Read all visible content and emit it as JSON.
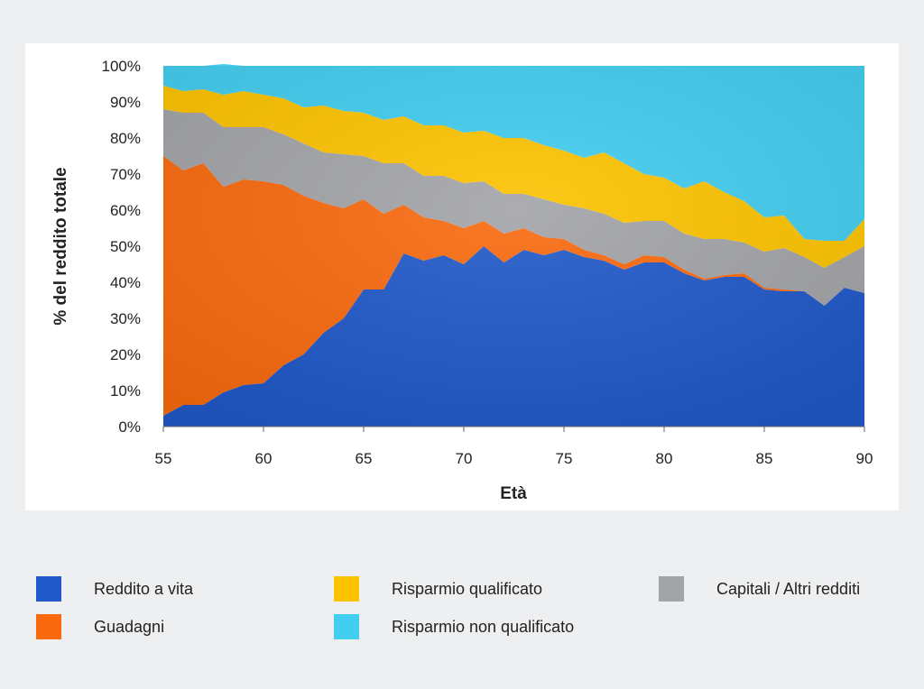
{
  "chart_data": {
    "type": "area",
    "stacked": true,
    "xlabel": "Età",
    "ylabel": "% del reddito totale",
    "xlim": [
      55,
      90
    ],
    "ylim": [
      0,
      100
    ],
    "x_ticks": [
      "55",
      "60",
      "65",
      "70",
      "75",
      "80",
      "85",
      "90"
    ],
    "y_ticks": [
      "0%",
      "10%",
      "20%",
      "30%",
      "40%",
      "50%",
      "60%",
      "70%",
      "80%",
      "90%",
      "100%"
    ],
    "legend_position": "bottom",
    "x": [
      55,
      56,
      57,
      58,
      59,
      60,
      61,
      62,
      63,
      64,
      65,
      66,
      67,
      68,
      69,
      70,
      71,
      72,
      73,
      74,
      75,
      76,
      77,
      78,
      79,
      80,
      81,
      82,
      83,
      84,
      85,
      86,
      87,
      88,
      89,
      90
    ],
    "series": [
      {
        "name": "Reddito a vita",
        "color": "#2159c9",
        "values": [
          3,
          6,
          6,
          9.5,
          11.5,
          12,
          17,
          20,
          26,
          30,
          38,
          38,
          48,
          46,
          47.5,
          45,
          50,
          45.5,
          49,
          47.5,
          49,
          47,
          46,
          43.5,
          45.5,
          45.5,
          42.5,
          40.5,
          41.5,
          41.5,
          38,
          37.5,
          37.5,
          33.5,
          38.5,
          37
        ]
      },
      {
        "name": "Guadagni",
        "color": "#f96a0e",
        "values": [
          72,
          65,
          67,
          57,
          57,
          56,
          50,
          44,
          36,
          30.5,
          25,
          21,
          13.5,
          12,
          9.5,
          10,
          7,
          8,
          6,
          5,
          3,
          2,
          1.5,
          1.5,
          2,
          1.5,
          1,
          0.5,
          0.5,
          1,
          0.5,
          0.5,
          0,
          0,
          0,
          0
        ]
      },
      {
        "name": "Capitali / Altri redditi",
        "color": "#a3a4a8",
        "values": [
          13,
          16,
          14,
          16.5,
          14.5,
          15,
          14,
          14.5,
          14,
          15,
          12,
          14,
          11.5,
          11.5,
          12.5,
          12.5,
          11,
          11,
          9.5,
          10.5,
          9.5,
          11.5,
          11.5,
          11.5,
          9.5,
          10,
          10,
          11,
          10,
          8.5,
          10,
          11.5,
          9.5,
          10.5,
          8.5,
          13
        ]
      },
      {
        "name": "Risparmio qualificato",
        "color": "#fdc300",
        "values": [
          6.5,
          6,
          6.5,
          9,
          10,
          9,
          10,
          10,
          13,
          12,
          12,
          12,
          13,
          14,
          14,
          14,
          14,
          15.5,
          15.5,
          15,
          15,
          14,
          17,
          16.5,
          13,
          12,
          12.5,
          16,
          13,
          11.5,
          9.5,
          9,
          5,
          7.5,
          4.5,
          7.5
        ]
      },
      {
        "name": "Risparmio non qualificato",
        "color": "#43cdf0",
        "values": [
          5.5,
          7,
          6.5,
          8.5,
          7,
          8,
          9,
          11.5,
          11,
          12.5,
          13,
          15,
          14,
          16.5,
          16.5,
          18.5,
          18,
          20,
          20,
          22,
          23.5,
          25.5,
          24,
          27,
          30,
          31,
          34,
          32,
          35,
          37.5,
          42,
          41.5,
          48,
          48.5,
          48.5,
          42.5
        ]
      }
    ]
  },
  "legend": {
    "items": [
      {
        "label": "Reddito a vita",
        "color": "#2159c9"
      },
      {
        "label": "Risparmio qualificato",
        "color": "#fdc300"
      },
      {
        "label": "Capitali / Altri redditi",
        "color": "#a3a4a8"
      },
      {
        "label": "Guadagni",
        "color": "#f96a0e"
      },
      {
        "label": "Risparmio non qualificato",
        "color": "#43cdf0"
      }
    ]
  }
}
